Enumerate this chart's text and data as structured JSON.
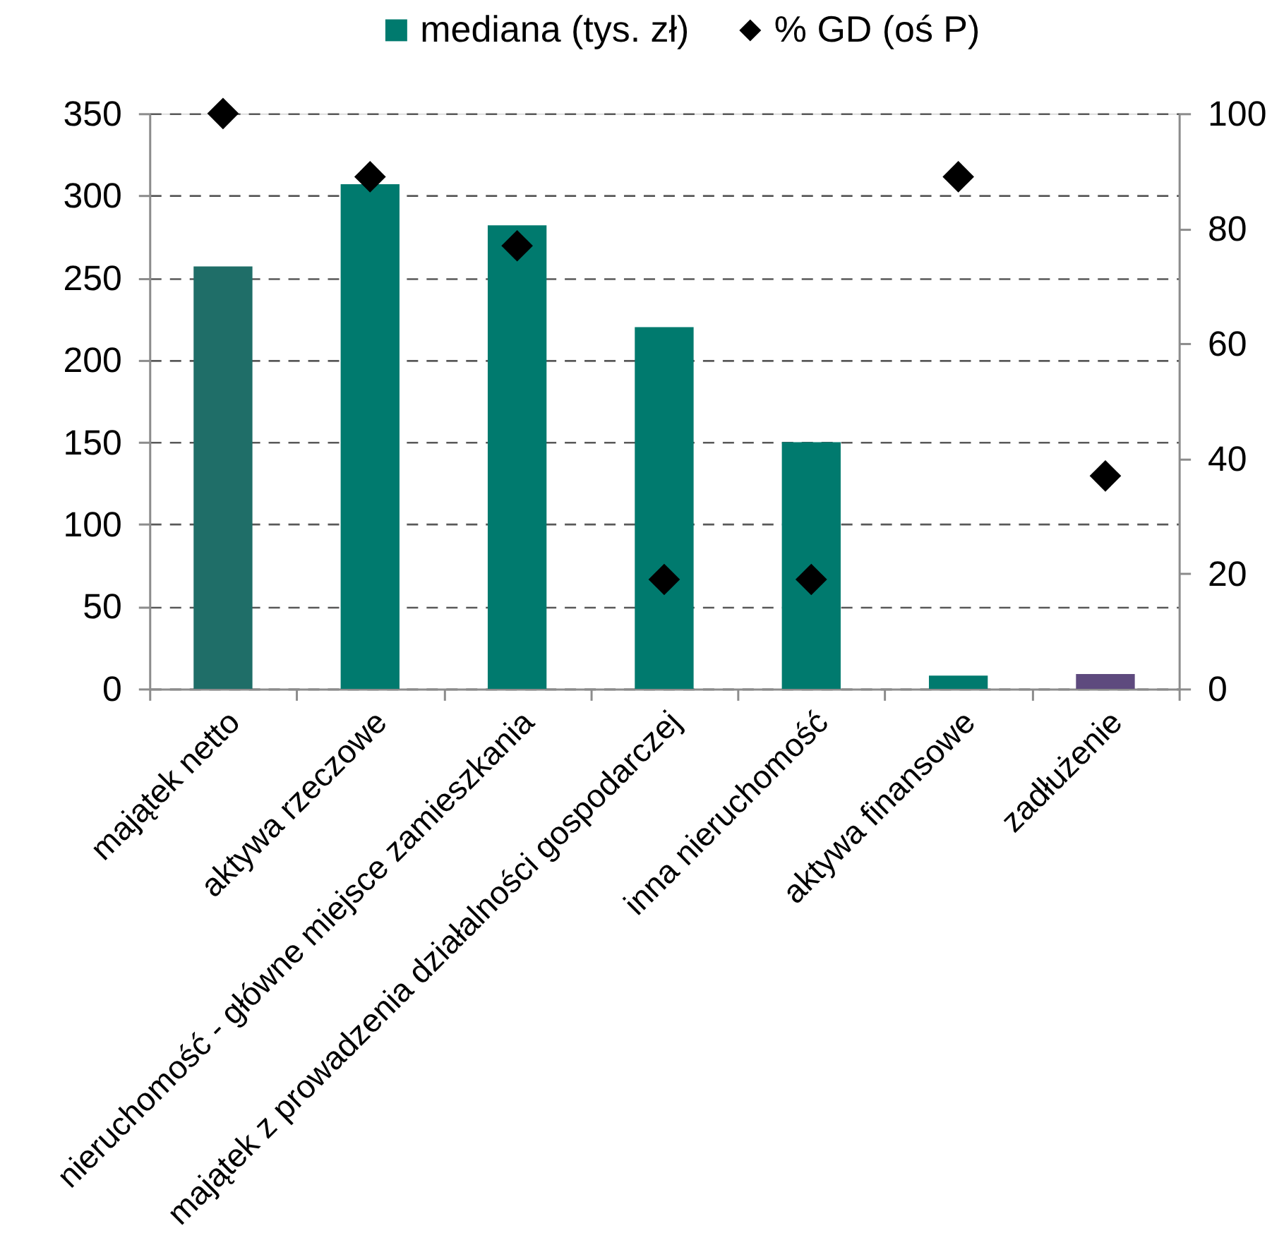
{
  "chart_data": {
    "type": "bar",
    "categories": [
      "majątek netto",
      "aktywa rzeczowe",
      "nieruchomość - główne miejsce zamieszkania",
      "majątek z prowadzenia działalności gospodarczej",
      "inna nieruchomość",
      "aktywa finansowe",
      "zadłużenie"
    ],
    "series": [
      {
        "name": "mediana (tys. zł)",
        "color": "#007a6e",
        "colors": [
          "#1f6e68",
          "#007a6e",
          "#007a6e",
          "#007a6e",
          "#007a6e",
          "#007a6e",
          "#5e4a7e"
        ],
        "values": [
          257,
          307,
          282,
          220,
          150,
          8,
          9
        ]
      },
      {
        "name": "% GD (oś P)",
        "type": "scatter",
        "axis": "y2",
        "color": "#000000",
        "marker": "diamond",
        "values": [
          100,
          89,
          77,
          19,
          19,
          89,
          37
        ]
      }
    ],
    "ylim": [
      0,
      350
    ],
    "yticks": [
      0,
      50,
      100,
      150,
      200,
      250,
      300,
      350
    ],
    "y2lim": [
      0,
      100
    ],
    "y2ticks": [
      0,
      20,
      40,
      60,
      80,
      100
    ],
    "grid": "y",
    "legend": "top"
  }
}
